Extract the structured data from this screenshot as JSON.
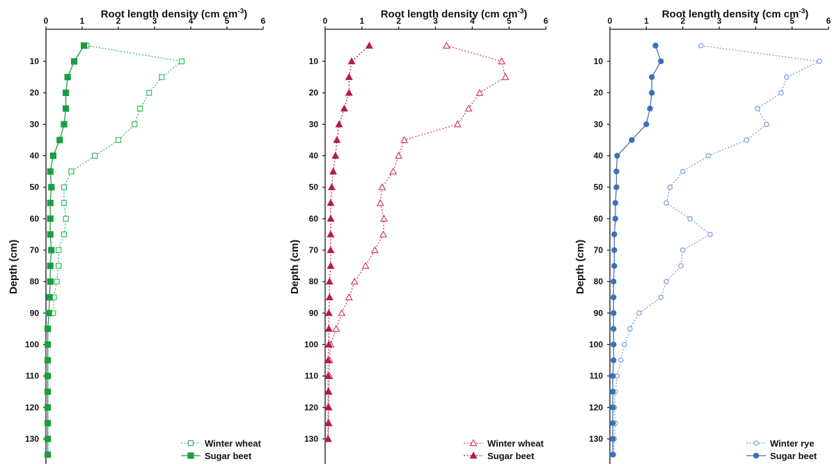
{
  "figure": {
    "ylabel": "Depth (cm)",
    "xlabel_main": "Root length density (cm cm",
    "xlabel_sup": "-3",
    "xlabel_close": ")"
  },
  "chart_data": [
    {
      "type": "line",
      "title": "",
      "xlabel": "Root length density (cm cm-3)",
      "ylabel": "Depth (cm)",
      "xlim": [
        0,
        6
      ],
      "ylim": [
        0,
        135
      ],
      "y_inverted": true,
      "x_axis_position": "top",
      "xticks": [
        "0",
        "1",
        "2",
        "3",
        "4",
        "5",
        "6"
      ],
      "yticks": [
        "10",
        "20",
        "30",
        "40",
        "50",
        "60",
        "70",
        "80",
        "90",
        "100",
        "110",
        "120",
        "130"
      ],
      "grid": false,
      "legend_position": "bottom-right",
      "series": [
        {
          "name": "Winter wheat",
          "color": "#2eb85c",
          "line": "dotted",
          "marker": "open-square",
          "depth": [
            5,
            10,
            15,
            20,
            25,
            30,
            35,
            40,
            45,
            50,
            55,
            60,
            65,
            70,
            75,
            80,
            85,
            90
          ],
          "values": [
            1.12,
            3.75,
            3.2,
            2.85,
            2.6,
            2.45,
            2.0,
            1.35,
            0.7,
            0.5,
            0.5,
            0.55,
            0.5,
            0.35,
            0.35,
            0.3,
            0.22,
            0.2
          ]
        },
        {
          "name": "Sugar beet",
          "color": "#1a9e45",
          "line": "solid",
          "marker": "filled-square",
          "depth": [
            5,
            10,
            15,
            20,
            25,
            30,
            35,
            40,
            45,
            50,
            55,
            60,
            65,
            70,
            75,
            80,
            85,
            90,
            95,
            100,
            105,
            110,
            115,
            120,
            125,
            130,
            135
          ],
          "values": [
            1.05,
            0.78,
            0.6,
            0.55,
            0.55,
            0.5,
            0.38,
            0.2,
            0.12,
            0.15,
            0.12,
            0.12,
            0.12,
            0.15,
            0.12,
            0.12,
            0.1,
            0.08,
            0.05,
            0.05,
            0.05,
            0.05,
            0.05,
            0.05,
            0.05,
            0.05,
            0.05
          ]
        }
      ]
    },
    {
      "type": "line",
      "title": "",
      "xlabel": "Root length density (cm cm-3)",
      "ylabel": "",
      "xlim": [
        0,
        6
      ],
      "ylim": [
        0,
        135
      ],
      "y_inverted": true,
      "x_axis_position": "top",
      "xticks": [
        "0",
        "1",
        "2",
        "3",
        "4",
        "5",
        "6"
      ],
      "yticks": [
        "10",
        "20",
        "30",
        "40",
        "50",
        "60",
        "70",
        "80",
        "90",
        "100",
        "110",
        "120",
        "130"
      ],
      "grid": false,
      "legend_position": "bottom-right",
      "series": [
        {
          "name": "Winter wheat",
          "color": "#d0386f",
          "line": "dotted",
          "marker": "open-triangle",
          "depth": [
            5,
            10,
            15,
            20,
            25,
            30,
            35,
            40,
            45,
            50,
            55,
            60,
            65,
            70,
            75,
            80,
            85,
            90,
            95,
            100,
            105,
            110,
            115,
            120,
            125,
            130
          ],
          "values": [
            3.3,
            4.8,
            4.9,
            4.2,
            3.9,
            3.6,
            2.15,
            2.0,
            1.85,
            1.55,
            1.5,
            1.6,
            1.58,
            1.35,
            1.1,
            0.8,
            0.65,
            0.45,
            0.3,
            0.15,
            0.12,
            0.12,
            0.1,
            0.1,
            0.1,
            0.08
          ]
        },
        {
          "name": "Sugar beet",
          "color": "#b81850",
          "line": "dotted",
          "marker": "filled-triangle",
          "depth": [
            5,
            10,
            15,
            20,
            25,
            30,
            35,
            40,
            45,
            50,
            55,
            60,
            65,
            70,
            75,
            80,
            85,
            90,
            95,
            100,
            105,
            110,
            115,
            120,
            125,
            130
          ],
          "values": [
            1.2,
            0.72,
            0.65,
            0.65,
            0.52,
            0.38,
            0.32,
            0.28,
            0.22,
            0.18,
            0.15,
            0.15,
            0.15,
            0.15,
            0.15,
            0.12,
            0.12,
            0.1,
            0.1,
            0.1,
            0.08,
            0.08,
            0.08,
            0.08,
            0.08,
            0.08
          ]
        }
      ]
    },
    {
      "type": "line",
      "title": "",
      "xlabel": "Root length density (cm cm-3)",
      "ylabel": "Depth (cm)",
      "xlim": [
        0,
        6
      ],
      "ylim": [
        0,
        135
      ],
      "y_inverted": true,
      "x_axis_position": "top",
      "xticks": [
        "0",
        "1",
        "2",
        "3",
        "4",
        "5",
        "6"
      ],
      "yticks": [
        "10",
        "20",
        "30",
        "40",
        "50",
        "60",
        "70",
        "80",
        "90",
        "100",
        "110",
        "120",
        "130"
      ],
      "grid": false,
      "legend_position": "bottom-right",
      "series": [
        {
          "name": "Winter rye",
          "color": "#6f9bd1",
          "line": "dotted",
          "marker": "open-circle",
          "depth": [
            5,
            10,
            15,
            20,
            25,
            30,
            35,
            40,
            45,
            50,
            55,
            60,
            65,
            70,
            75,
            80,
            85,
            90,
            95,
            100,
            105,
            110,
            115,
            120,
            125,
            130,
            135
          ],
          "values": [
            2.5,
            5.75,
            4.85,
            4.7,
            4.05,
            4.3,
            3.75,
            2.7,
            2.0,
            1.65,
            1.55,
            2.2,
            2.75,
            2.0,
            1.95,
            1.55,
            1.4,
            0.8,
            0.55,
            0.4,
            0.3,
            0.2,
            0.15,
            0.12,
            0.15,
            0.12,
            0.1
          ]
        },
        {
          "name": "Sugar beet",
          "color": "#3a72b8",
          "line": "solid",
          "marker": "filled-circle",
          "depth": [
            5,
            10,
            15,
            20,
            25,
            30,
            35,
            40,
            45,
            50,
            55,
            60,
            65,
            70,
            75,
            80,
            85,
            90,
            95,
            100,
            105,
            110,
            115,
            120,
            125,
            130,
            135
          ],
          "values": [
            1.25,
            1.4,
            1.15,
            1.15,
            1.1,
            1.0,
            0.6,
            0.2,
            0.18,
            0.18,
            0.15,
            0.15,
            0.12,
            0.12,
            0.12,
            0.1,
            0.1,
            0.1,
            0.1,
            0.1,
            0.1,
            0.08,
            0.08,
            0.08,
            0.08,
            0.08,
            0.08
          ]
        }
      ]
    }
  ]
}
